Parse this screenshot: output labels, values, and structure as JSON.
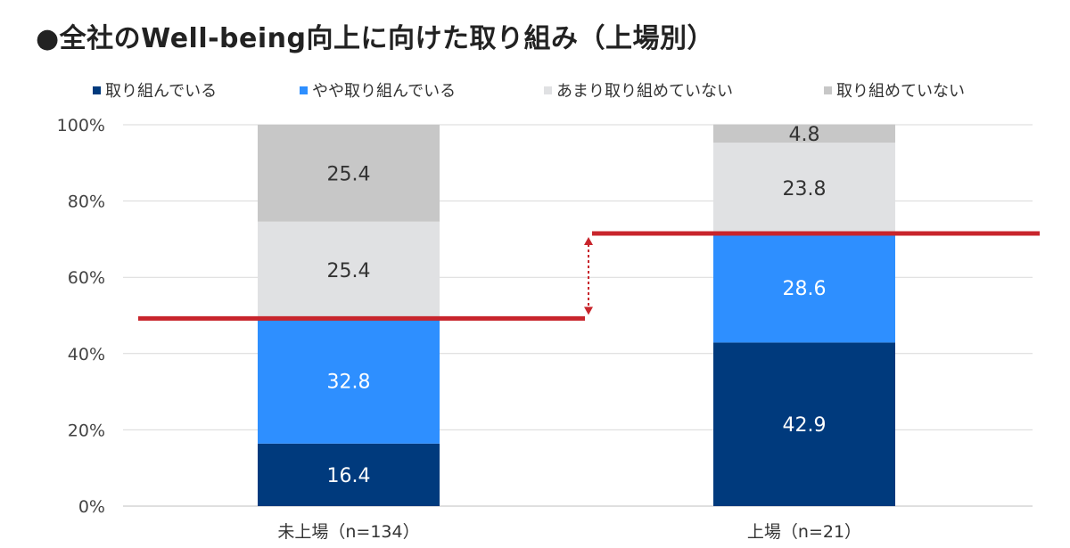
{
  "chart_data": {
    "type": "bar",
    "stacked": true,
    "title": "●全社のWell-being向上に向けた取り組み（上場別）",
    "categories": [
      "未上場（n=134）",
      "上場（n=21）"
    ],
    "series": [
      {
        "name": "取り組んでいる",
        "color": "#003A7D",
        "values": [
          16.4,
          42.9
        ],
        "labels": [
          "16.4",
          "42.9"
        ]
      },
      {
        "name": "やや取り組んでいる",
        "color": "#2E8FFF",
        "values": [
          32.8,
          28.6
        ],
        "labels": [
          "32.8",
          "28.6"
        ]
      },
      {
        "name": "あまり取り組めていない",
        "color": "#E0E1E3",
        "values": [
          25.4,
          23.8
        ],
        "labels": [
          "25.4",
          "23.8"
        ]
      },
      {
        "name": "取り組めていない",
        "color": "#C7C7C7",
        "values": [
          25.4,
          4.8
        ],
        "labels": [
          "25.4",
          "4.8"
        ]
      }
    ],
    "y_ticks": [
      "0%",
      "20%",
      "40%",
      "60%",
      "80%",
      "100%"
    ],
    "ylim": [
      0,
      100
    ],
    "grid": true,
    "legend_position": "top",
    "annotation": {
      "type": "reference-lines-with-arrow",
      "color": "#C8252C",
      "levels": [
        49.2,
        71.5
      ]
    }
  }
}
